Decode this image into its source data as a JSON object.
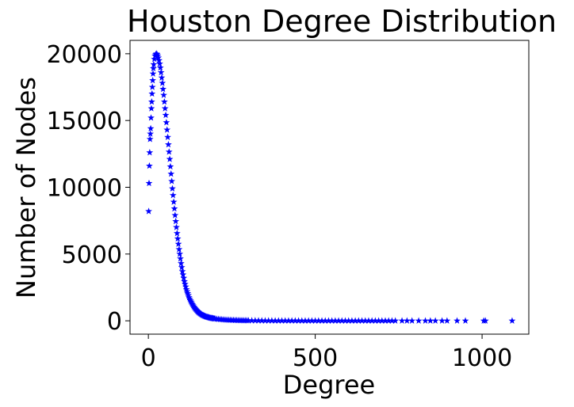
{
  "chart_data": {
    "type": "scatter",
    "title": "Houston Degree Distribution",
    "xlabel": "Degree",
    "ylabel": "Number of Nodes",
    "xlim": [
      -55,
      1140
    ],
    "ylim": [
      -1000,
      21000
    ],
    "xticks": [
      0,
      500,
      1000
    ],
    "xtick_labels": [
      "0",
      "500",
      "1000"
    ],
    "yticks": [
      0,
      5000,
      10000,
      15000,
      20000
    ],
    "ytick_labels": [
      "0",
      "5000",
      "10000",
      "15000",
      "20000"
    ],
    "grid": false,
    "legend": "none",
    "marker": "star",
    "color": "#0000ff",
    "series": [
      {
        "x": [
          1,
          2,
          3,
          4,
          5,
          6,
          7,
          8,
          9,
          10,
          11,
          12,
          13,
          14,
          15,
          16,
          18,
          20,
          22,
          24,
          26,
          28,
          30,
          32,
          34,
          36,
          38,
          40,
          42,
          44,
          46,
          48,
          50,
          52,
          54,
          56,
          58,
          60,
          62,
          64,
          66,
          68,
          70,
          72,
          74,
          76,
          78,
          80,
          82,
          84,
          86,
          88,
          90,
          92,
          94,
          96,
          98,
          100,
          102,
          104,
          106,
          108,
          110,
          112,
          114,
          116,
          118,
          120,
          122,
          124,
          126,
          128,
          130,
          132,
          134,
          136,
          138,
          140,
          142,
          144,
          146,
          148,
          150,
          152,
          154,
          156,
          158,
          160,
          162,
          164,
          166,
          168,
          170,
          172,
          174,
          176,
          178,
          180,
          182,
          184,
          186,
          188,
          190,
          192,
          194,
          196,
          198,
          200,
          205,
          210,
          215,
          220,
          225,
          230,
          235,
          240,
          245,
          250,
          255,
          260,
          265,
          270,
          275,
          280,
          285,
          290,
          295,
          300,
          310,
          320,
          330,
          340,
          350,
          360,
          370,
          380,
          390,
          400,
          410,
          420,
          430,
          440,
          450,
          460,
          470,
          480,
          490,
          500,
          510,
          520,
          530,
          540,
          550,
          560,
          570,
          580,
          590,
          600,
          610,
          620,
          630,
          640,
          650,
          660,
          670,
          680,
          690,
          700,
          710,
          720,
          730,
          740,
          760,
          775,
          790,
          810,
          830,
          845,
          860,
          880,
          895,
          925,
          950,
          1005,
          1010,
          1090
        ],
        "y": [
          8200,
          10300,
          11600,
          12600,
          13600,
          14000,
          14400,
          15200,
          15900,
          16400,
          17000,
          17500,
          18000,
          18500,
          18900,
          19200,
          19600,
          19850,
          19950,
          20000,
          19950,
          19850,
          19700,
          19500,
          19250,
          18950,
          18600,
          18200,
          17800,
          17350,
          16900,
          16400,
          15900,
          15400,
          14850,
          14300,
          13750,
          13200,
          12650,
          12100,
          11550,
          11000,
          10450,
          9900,
          9400,
          8900,
          8400,
          7900,
          7450,
          7000,
          6550,
          6150,
          5750,
          5350,
          5000,
          4650,
          4300,
          4000,
          3700,
          3450,
          3200,
          2950,
          2750,
          2550,
          2350,
          2200,
          2050,
          1900,
          1750,
          1630,
          1520,
          1420,
          1320,
          1230,
          1140,
          1060,
          990,
          920,
          860,
          800,
          745,
          695,
          650,
          605,
          565,
          530,
          495,
          465,
          435,
          410,
          385,
          360,
          340,
          320,
          300,
          285,
          270,
          255,
          240,
          228,
          216,
          205,
          195,
          185,
          176,
          168,
          160,
          152,
          135,
          120,
          107,
          95,
          85,
          76,
          68,
          61,
          55,
          50,
          45,
          41,
          37,
          34,
          31,
          28,
          25,
          23,
          21,
          19,
          16,
          14,
          12,
          10,
          9,
          8,
          7,
          6,
          5,
          5,
          4,
          4,
          3,
          3,
          3,
          2,
          2,
          2,
          2,
          2,
          1,
          1,
          1,
          1,
          1,
          1,
          1,
          1,
          1,
          1,
          1,
          1,
          1,
          1,
          1,
          1,
          1,
          1,
          1,
          1,
          1,
          1,
          1,
          1,
          1,
          1,
          1,
          1,
          1,
          1,
          1,
          1,
          1,
          1,
          1,
          1,
          1,
          1
        ]
      }
    ]
  }
}
